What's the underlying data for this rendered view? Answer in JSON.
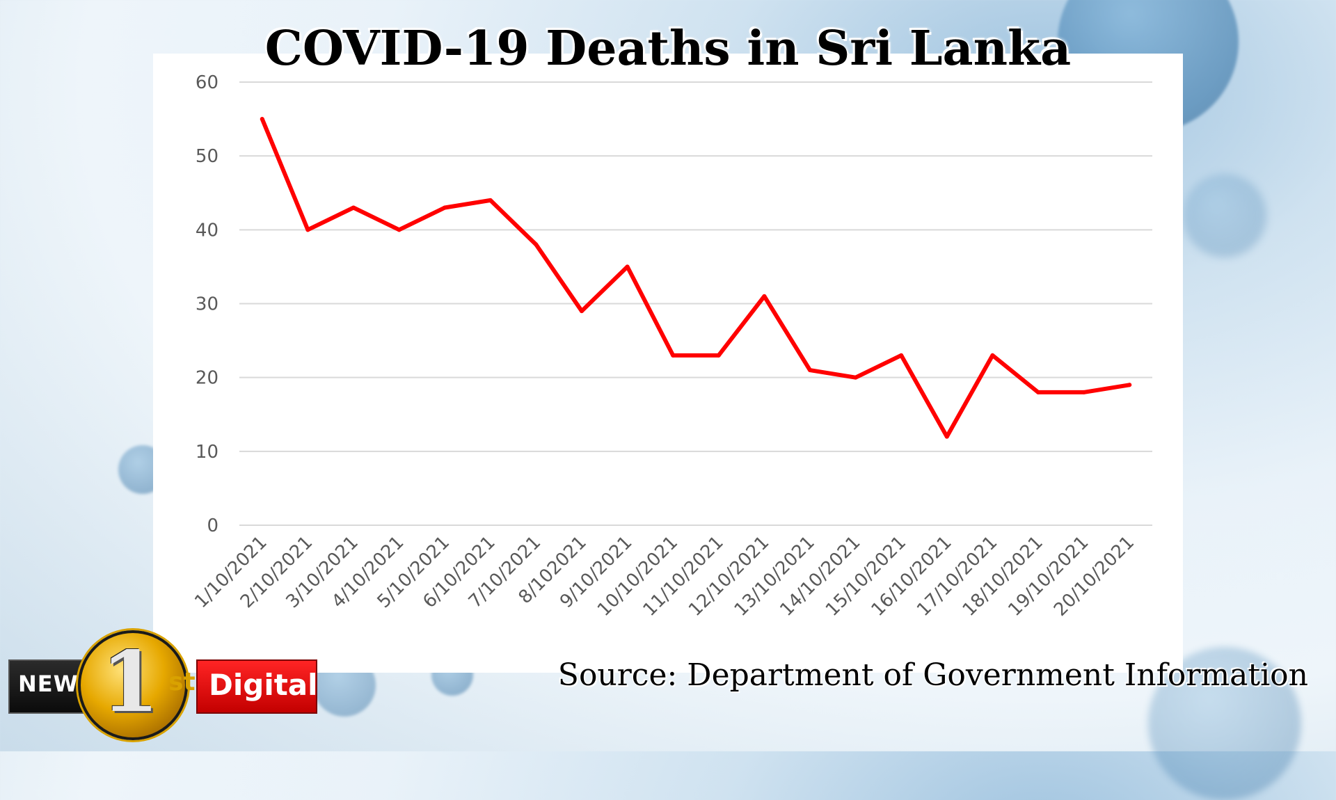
{
  "chart_data": {
    "type": "line",
    "title": "COVID-19 Deaths in Sri Lanka",
    "xlabel": "",
    "ylabel": "",
    "ylim": [
      0,
      60
    ],
    "yticks": [
      "0",
      "10",
      "20",
      "30",
      "40",
      "50",
      "60"
    ],
    "categories": [
      "1/10/2021",
      "2/10/2021",
      "3/10/2021",
      "4/10/2021",
      "5/10/2021",
      "6/10/2021",
      "7/10/2021",
      "8/102021",
      "9/10/2021",
      "10/10/2021",
      "11/10/2021",
      "12/10/2021",
      "13/10/2021",
      "14/10/2021",
      "15/10/2021",
      "16/10/2021",
      "17/10/2021",
      "18/10/2021",
      "19/10/2021",
      "20/10/2021"
    ],
    "series": [
      {
        "values": [
          55,
          40,
          43,
          40,
          43,
          44,
          38,
          29,
          35,
          23,
          23,
          31,
          21,
          20,
          23,
          12,
          23,
          18,
          18,
          19
        ]
      }
    ],
    "grid": true,
    "line_color": "#ff0000"
  },
  "source": "Source: Department of Government Information",
  "logo": {
    "left": "NEWS",
    "number": "1",
    "st": "st",
    "right": "Digital"
  }
}
